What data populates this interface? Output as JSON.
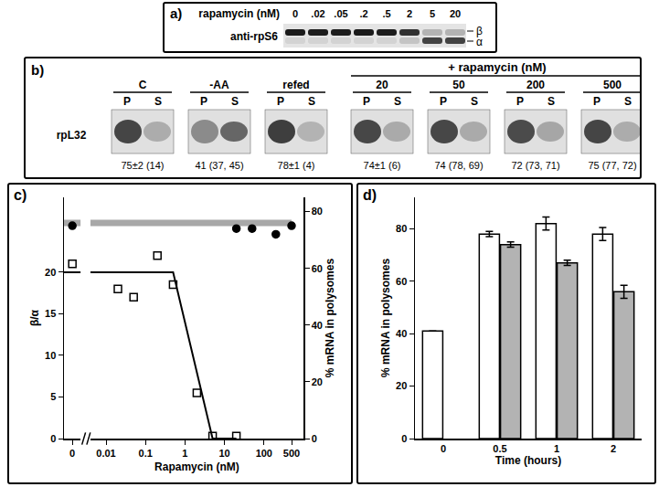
{
  "panel_a": {
    "label": "a)",
    "title": "rapamycin (nM)",
    "lanes": [
      "0",
      ".02",
      ".05",
      ".2",
      ".5",
      "2",
      "5",
      "20"
    ],
    "row_label": "anti-rpS6",
    "bands": [
      "β",
      "α"
    ]
  },
  "panel_b": {
    "label": "b)",
    "header": "+ rapamycin (nM)",
    "row_label": "rpL32",
    "lane_labels": [
      "P",
      "S"
    ],
    "groups": [
      {
        "label": "C",
        "text": "75±2 (14)"
      },
      {
        "label": "-AA",
        "text": "41 (37, 45)"
      },
      {
        "label": "refed",
        "text": "78±1 (4)"
      }
    ],
    "rapamycin_groups": [
      {
        "label": "20",
        "text": "74±1 (6)"
      },
      {
        "label": "50",
        "text": "74 (78, 69)"
      },
      {
        "label": "200",
        "text": "72 (73, 71)"
      },
      {
        "label": "500",
        "text": "75 (77, 72)"
      }
    ]
  },
  "chart_data": [
    {
      "type": "scatter",
      "title": "c)",
      "x_label": "Rapamycin (nM)",
      "y_label": "β/α",
      "y2_label": "% mRNA in polysomes",
      "log": "x",
      "xlim": [
        0.004,
        1000
      ],
      "xticks": [
        0.01,
        0.1,
        1,
        10,
        100,
        500
      ],
      "zero_xlim": [
        -1,
        1
      ],
      "zero_xticks": [
        0
      ],
      "ylim": [
        0,
        29
      ],
      "yticks": [
        0,
        5,
        10,
        15,
        20
      ],
      "y2lim": [
        0,
        85
      ],
      "y2ticks": [
        0,
        20,
        40,
        60,
        80
      ],
      "grid": false,
      "series": [
        {
          "type": "line",
          "color": "#000000",
          "line_style": "solid",
          "x": [
            0,
            0.5,
            5,
            20
          ],
          "values": [
            20,
            20,
            0,
            0
          ]
        },
        {
          "type": "line",
          "axis": "y2",
          "color": "#a8a8a8",
          "line_style": "solid",
          "x": [
            0,
            500
          ],
          "values": [
            76,
            76
          ]
        },
        {
          "type": "scatter",
          "marker": "open_square",
          "color": "#000000",
          "x": [
            0,
            0.02,
            0.05,
            0.2,
            0.5,
            2,
            5,
            20
          ],
          "values": [
            21,
            18,
            17,
            22,
            18.5,
            5.5,
            0.3,
            0.3
          ]
        },
        {
          "type": "scatter",
          "axis": "y2",
          "marker": "circle",
          "color": "#000000",
          "x": [
            0,
            20,
            50,
            200,
            500
          ],
          "values": [
            75,
            74,
            74,
            72,
            75
          ]
        }
      ]
    },
    {
      "type": "bar",
      "title": "d)",
      "x_label": "Time (hours)",
      "y_label": "% mRNA in polysomes",
      "categories": [
        "0",
        "0.5",
        "1",
        "2"
      ],
      "ylim": [
        0,
        92
      ],
      "yticks": [
        0,
        20,
        40,
        60,
        80
      ],
      "grid": false,
      "series": [
        {
          "color": "#ffffff",
          "values": [
            41,
            78,
            82,
            78
          ],
          "errors": [
            null,
            1,
            2.5,
            2.5
          ]
        },
        {
          "color": "#b3b3b3",
          "values": [
            null,
            74,
            67,
            56
          ],
          "errors": [
            null,
            1,
            1,
            2.5
          ]
        }
      ]
    }
  ]
}
